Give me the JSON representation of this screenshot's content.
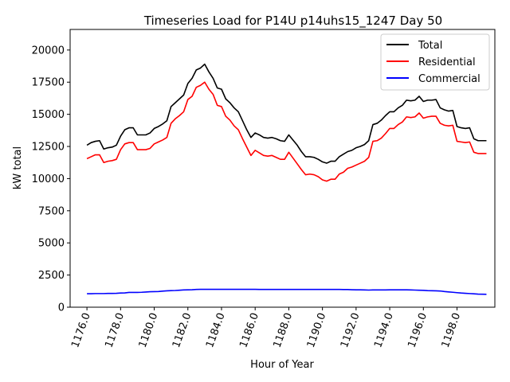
{
  "chart_data": {
    "type": "line",
    "title": "Timeseries Load for P14U p14uhs15_1247  Day 50",
    "xlabel": "Hour of Year",
    "ylabel": "kW total",
    "xlim": [
      1175.0,
      1200.25
    ],
    "ylim": [
      0,
      21600
    ],
    "xticks": [
      1176,
      1178,
      1180,
      1182,
      1184,
      1186,
      1188,
      1190,
      1192,
      1194,
      1196,
      1198
    ],
    "xtick_labels": [
      "1176.0",
      "1178.0",
      "1180.0",
      "1182.0",
      "1184.0",
      "1186.0",
      "1188.0",
      "1190.0",
      "1192.0",
      "1194.0",
      "1196.0",
      "1198.0"
    ],
    "yticks": [
      0,
      2500,
      5000,
      7500,
      10000,
      12500,
      15000,
      17500,
      20000
    ],
    "ytick_labels": [
      "0",
      "2500",
      "5000",
      "7500",
      "10000",
      "12500",
      "15000",
      "17500",
      "20000"
    ],
    "legend_position": "top-right",
    "x": [
      1176.0,
      1176.25,
      1176.5,
      1176.75,
      1177.0,
      1177.25,
      1177.5,
      1177.75,
      1178.0,
      1178.25,
      1178.5,
      1178.75,
      1179.0,
      1179.25,
      1179.5,
      1179.75,
      1180.0,
      1180.25,
      1180.5,
      1180.75,
      1181.0,
      1181.25,
      1181.5,
      1181.75,
      1182.0,
      1182.25,
      1182.5,
      1182.75,
      1183.0,
      1183.25,
      1183.5,
      1183.75,
      1184.0,
      1184.25,
      1184.5,
      1184.75,
      1185.0,
      1185.25,
      1185.5,
      1185.75,
      1186.0,
      1186.25,
      1186.5,
      1186.75,
      1187.0,
      1187.25,
      1187.5,
      1187.75,
      1188.0,
      1188.25,
      1188.5,
      1188.75,
      1189.0,
      1189.25,
      1189.5,
      1189.75,
      1190.0,
      1190.25,
      1190.5,
      1190.75,
      1191.0,
      1191.25,
      1191.5,
      1191.75,
      1192.0,
      1192.25,
      1192.5,
      1192.75,
      1193.0,
      1193.25,
      1193.5,
      1193.75,
      1194.0,
      1194.25,
      1194.5,
      1194.75,
      1195.0,
      1195.25,
      1195.5,
      1195.75,
      1196.0,
      1196.25,
      1196.5,
      1196.75,
      1197.0,
      1197.25,
      1197.5,
      1197.75,
      1198.0,
      1198.25,
      1198.5,
      1198.75,
      1199.0,
      1199.25,
      1199.5,
      1199.75
    ],
    "series": [
      {
        "name": "Total",
        "color": "#000000",
        "values": [
          12600,
          12800,
          12900,
          12950,
          12300,
          12400,
          12450,
          12600,
          13300,
          13800,
          13950,
          13950,
          13400,
          13400,
          13400,
          13550,
          13900,
          14050,
          14250,
          14500,
          15600,
          15900,
          16200,
          16500,
          17400,
          17800,
          18450,
          18600,
          18900,
          18300,
          17800,
          17050,
          16950,
          16200,
          15900,
          15500,
          15200,
          14500,
          13800,
          13200,
          13550,
          13400,
          13200,
          13150,
          13200,
          13100,
          12950,
          12900,
          13400,
          13000,
          12600,
          12100,
          11700,
          11700,
          11650,
          11500,
          11300,
          11200,
          11350,
          11350,
          11700,
          11900,
          12100,
          12200,
          12400,
          12500,
          12650,
          12950,
          14200,
          14300,
          14550,
          14900,
          15200,
          15200,
          15500,
          15700,
          16100,
          16050,
          16100,
          16400,
          16000,
          16100,
          16100,
          16150,
          15500,
          15350,
          15250,
          15300,
          14050,
          13950,
          13900,
          13950,
          13100,
          12950,
          12950,
          12950
        ]
      },
      {
        "name": "Residential",
        "color": "#ff0000",
        "values": [
          11550,
          11700,
          11850,
          11850,
          11250,
          11350,
          11400,
          11500,
          12250,
          12700,
          12800,
          12800,
          12250,
          12250,
          12250,
          12350,
          12700,
          12850,
          13000,
          13200,
          14300,
          14650,
          14900,
          15200,
          16150,
          16400,
          17100,
          17250,
          17500,
          16950,
          16550,
          15700,
          15600,
          14850,
          14550,
          14100,
          13800,
          13100,
          12450,
          11800,
          12200,
          12000,
          11800,
          11750,
          11800,
          11650,
          11500,
          11500,
          12050,
          11600,
          11150,
          10700,
          10300,
          10350,
          10300,
          10150,
          9900,
          9800,
          9950,
          9950,
          10350,
          10500,
          10800,
          10900,
          11050,
          11200,
          11350,
          11650,
          12900,
          12950,
          13150,
          13500,
          13900,
          13900,
          14200,
          14400,
          14800,
          14750,
          14800,
          15100,
          14700,
          14800,
          14850,
          14850,
          14300,
          14150,
          14100,
          14150,
          12900,
          12850,
          12800,
          12850,
          12050,
          11950,
          11950,
          11950
        ]
      },
      {
        "name": "Commercial",
        "color": "#0000ff",
        "values": [
          1050,
          1050,
          1060,
          1060,
          1060,
          1070,
          1070,
          1080,
          1100,
          1110,
          1150,
          1150,
          1150,
          1160,
          1180,
          1200,
          1210,
          1220,
          1250,
          1270,
          1290,
          1300,
          1320,
          1340,
          1350,
          1360,
          1380,
          1390,
          1390,
          1390,
          1390,
          1390,
          1390,
          1390,
          1390,
          1390,
          1390,
          1390,
          1390,
          1390,
          1390,
          1380,
          1380,
          1380,
          1380,
          1380,
          1380,
          1380,
          1380,
          1380,
          1380,
          1380,
          1380,
          1380,
          1380,
          1380,
          1380,
          1380,
          1380,
          1380,
          1380,
          1370,
          1370,
          1360,
          1350,
          1350,
          1340,
          1330,
          1340,
          1340,
          1340,
          1340,
          1350,
          1350,
          1350,
          1350,
          1350,
          1340,
          1330,
          1320,
          1310,
          1290,
          1280,
          1270,
          1260,
          1220,
          1190,
          1160,
          1130,
          1100,
          1080,
          1060,
          1040,
          1020,
          1010,
          1000
        ]
      }
    ]
  }
}
